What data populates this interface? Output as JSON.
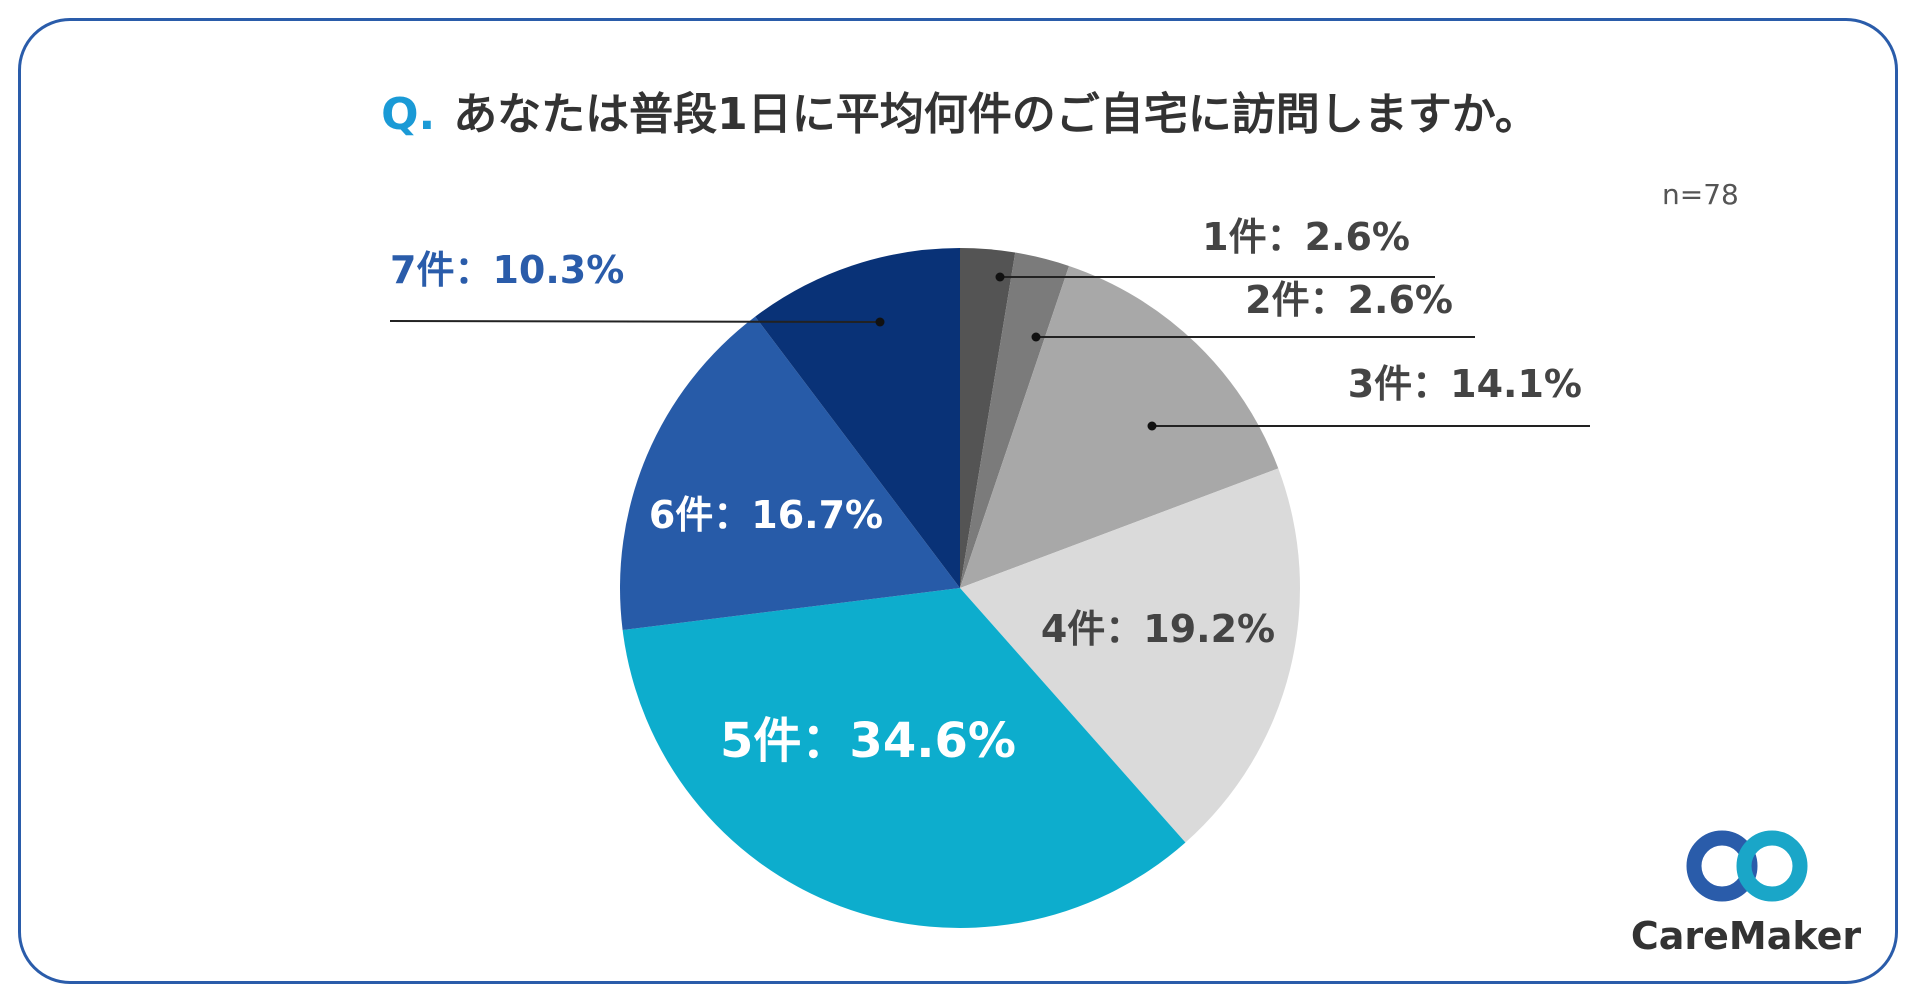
{
  "header": {
    "q_mark": "Q.",
    "question": "あなたは普段1日に平均何件のご自宅に訪問しますか。",
    "sample_size": "n=78"
  },
  "logo": {
    "name": "CareMaker",
    "colors": [
      "#2a5caa",
      "#1aa6c8"
    ]
  },
  "chart_data": {
    "type": "pie",
    "title": "あなたは普段1日に平均何件のご自宅に訪問しますか。",
    "start": "12 o'clock",
    "direction": "clockwise",
    "slices": [
      {
        "category": "1件",
        "value": 2.6,
        "label": "1件：2.6%",
        "color": "#545454",
        "label_color": "#444444"
      },
      {
        "category": "2件",
        "value": 2.6,
        "label": "2件：2.6%",
        "color": "#7b7b7b",
        "label_color": "#444444"
      },
      {
        "category": "3件",
        "value": 14.1,
        "label": "3件：14.1%",
        "color": "#a8a8a8",
        "label_color": "#444444"
      },
      {
        "category": "4件",
        "value": 19.2,
        "label": "4件：19.2%",
        "color": "#dadada",
        "label_color": "#444444"
      },
      {
        "category": "5件",
        "value": 34.6,
        "label": "5件：34.6%",
        "color": "#0dadcd",
        "label_color": "#ffffff"
      },
      {
        "category": "6件",
        "value": 16.7,
        "label": "6件：16.7%",
        "color": "#275ba8",
        "label_color": "#ffffff"
      },
      {
        "category": "7件",
        "value": 10.3,
        "label": "7件：10.3%",
        "color": "#093277",
        "label_color": "#2a5caa"
      }
    ]
  }
}
